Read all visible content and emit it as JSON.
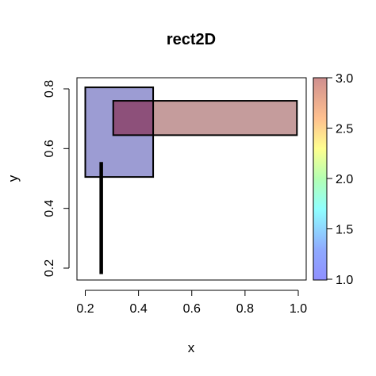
{
  "chart_data": {
    "type": "rect2D",
    "title": "rect2D",
    "xlabel": "x",
    "ylabel": "y",
    "xlim": [
      0.2,
      1.0
    ],
    "ylim": [
      0.2,
      0.8
    ],
    "xticks": [
      0.2,
      0.4,
      0.6,
      0.8,
      1.0
    ],
    "xtick_labels": [
      "0.2",
      "0.4",
      "0.6",
      "0.8",
      "1.0"
    ],
    "yticks": [
      0.2,
      0.4,
      0.6,
      0.8
    ],
    "ytick_labels": [
      "0.2",
      "0.4",
      "0.6",
      "0.8"
    ],
    "grid": false,
    "rectangles": [
      {
        "x0": 0.2,
        "x1": 0.455,
        "y0": 0.505,
        "y1": 0.805,
        "colvar": 1.0,
        "fill": "#9c9cd3"
      },
      {
        "x0": 0.305,
        "x1": 0.995,
        "y0": 0.645,
        "y1": 0.76,
        "colvar": 3.0,
        "fill": "#c59c9c"
      },
      {
        "x0": 0.26,
        "x1": 0.26,
        "y0": 0.18,
        "y1": 0.555,
        "colvar": null,
        "fill": "#000000"
      }
    ],
    "overlap_fill": "#8d507a",
    "colorkey": {
      "range": [
        1.0,
        3.0
      ],
      "ticks": [
        1.0,
        1.5,
        2.0,
        2.5,
        3.0
      ],
      "tick_labels": [
        "1.0",
        "1.5",
        "2.0",
        "2.5",
        "3.0"
      ],
      "position": "right",
      "palette": "jet",
      "alpha": 0.5
    }
  }
}
